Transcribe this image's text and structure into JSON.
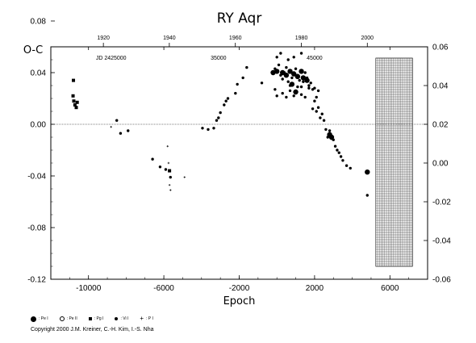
{
  "chart_data": {
    "type": "scatter",
    "title": "RY Aqr",
    "xlabel": "Epoch",
    "ylabel": "O-C",
    "xlim": [
      -12000,
      8000
    ],
    "ylim": [
      -0.12,
      0.06
    ],
    "left_ylim": [
      -0.12,
      0.06
    ],
    "right_ylim": [
      -0.06,
      0.06
    ],
    "x_ticks": [
      "-10000",
      "-6000",
      "-2000",
      "2000",
      "6000"
    ],
    "x_tick_values": [
      -10000,
      -6000,
      -2000,
      2000,
      6000
    ],
    "y_ticks_left": [
      "-0.12",
      "-0.08",
      "-0.04",
      "0.00",
      "0.04",
      "0.08"
    ],
    "y_tick_values_left": [
      -0.12,
      -0.08,
      -0.04,
      0.0,
      0.04,
      0.08
    ],
    "y_ticks_right": [
      "-0.06",
      "-0.04",
      "-0.02",
      "0.00",
      "0.02",
      "0.04",
      "0.06"
    ],
    "y_tick_values_right": [
      -0.06,
      -0.04,
      -0.02,
      0.0,
      0.02,
      0.04,
      0.06
    ],
    "top_year_ticks": [
      "1920",
      "1940",
      "1960",
      "1980",
      "2000"
    ],
    "top_year_epochs": [
      -9210,
      -5710,
      -2205,
      1300,
      4800
    ],
    "jd_labels": [
      "JD 2425000",
      "35000",
      "45000"
    ],
    "jd_label_epochs": [
      -8800,
      -3100,
      2000
    ],
    "future_band": [
      5250,
      7200
    ],
    "grid": false,
    "zero_line": true,
    "legend_position": "bottom-left",
    "legend": [
      {
        "symbol": "pe1",
        "label": ": Pe I"
      },
      {
        "symbol": "pe2",
        "label": ": Pe II"
      },
      {
        "symbol": "pg",
        "label": ": Pg I"
      },
      {
        "symbol": "vis",
        "label": ": Vi I"
      },
      {
        "symbol": "pi",
        "label": ": P I"
      }
    ],
    "series": [
      {
        "symbol": "pg",
        "points": [
          [
            -10800,
            0.034
          ],
          [
            -10820,
            0.022
          ],
          [
            -10780,
            0.018
          ],
          [
            -10720,
            0.015
          ],
          [
            -10650,
            0.013
          ],
          [
            -10600,
            0.017
          ],
          [
            -5700,
            -0.036
          ]
        ]
      },
      {
        "symbol": "vis",
        "points": [
          [
            -8500,
            0.003
          ],
          [
            -8300,
            -0.007
          ],
          [
            -7900,
            -0.005
          ],
          [
            -6600,
            -0.027
          ],
          [
            -6200,
            -0.033
          ],
          [
            -5900,
            -0.035
          ],
          [
            -5650,
            -0.041
          ],
          [
            -3950,
            -0.003
          ],
          [
            -3650,
            -0.004
          ],
          [
            -3350,
            -0.003
          ],
          [
            -3200,
            0.003
          ],
          [
            -3100,
            0.005
          ],
          [
            -3000,
            0.009
          ],
          [
            -2800,
            0.015
          ],
          [
            -2700,
            0.018
          ],
          [
            -2600,
            0.02
          ],
          [
            -2200,
            0.024
          ],
          [
            -2100,
            0.031
          ],
          [
            -1800,
            0.036
          ],
          [
            -1600,
            0.044
          ],
          [
            -800,
            0.032
          ],
          [
            0,
            0.052
          ],
          [
            -100,
            0.043
          ],
          [
            100,
            0.046
          ],
          [
            200,
            0.038
          ],
          [
            300,
            0.035
          ],
          [
            400,
            0.04
          ],
          [
            500,
            0.044
          ],
          [
            600,
            0.033
          ],
          [
            700,
            0.03
          ],
          [
            800,
            0.036
          ],
          [
            900,
            0.04
          ],
          [
            1000,
            0.043
          ],
          [
            1100,
            0.038
          ],
          [
            1200,
            0.034
          ],
          [
            1300,
            0.029
          ],
          [
            1400,
            0.033
          ],
          [
            1500,
            0.04
          ],
          [
            1600,
            0.036
          ],
          [
            1700,
            0.03
          ],
          [
            1800,
            0.032
          ],
          [
            1900,
            0.027
          ],
          [
            2000,
            0.028
          ],
          [
            2100,
            0.021
          ],
          [
            2200,
            0.026
          ],
          [
            1900,
            0.012
          ],
          [
            2000,
            0.018
          ],
          [
            2100,
            0.01
          ],
          [
            2200,
            0.013
          ],
          [
            2300,
            0.005
          ],
          [
            2400,
            0.008
          ],
          [
            2500,
            0.003
          ],
          [
            2600,
            -0.004
          ],
          [
            2700,
            -0.01
          ],
          [
            2800,
            -0.005
          ],
          [
            2900,
            -0.011
          ],
          [
            3000,
            -0.012
          ],
          [
            3100,
            -0.017
          ],
          [
            3200,
            -0.02
          ],
          [
            3300,
            -0.022
          ],
          [
            3400,
            -0.025
          ],
          [
            3500,
            -0.028
          ],
          [
            3700,
            -0.032
          ],
          [
            3900,
            -0.034
          ],
          [
            -100,
            0.027
          ],
          [
            0,
            0.022
          ],
          [
            300,
            0.024
          ],
          [
            500,
            0.021
          ],
          [
            700,
            0.026
          ],
          [
            900,
            0.022
          ],
          [
            1100,
            0.029
          ],
          [
            1300,
            0.023
          ],
          [
            1500,
            0.021
          ],
          [
            1700,
            0.028
          ],
          [
            200,
            0.055
          ],
          [
            900,
            0.052
          ],
          [
            1300,
            0.055
          ],
          [
            600,
            0.05
          ],
          [
            4800,
            -0.055
          ]
        ]
      },
      {
        "symbol": "pe1",
        "points": [
          [
            -200,
            0.04
          ],
          [
            0,
            0.041
          ],
          [
            300,
            0.04
          ],
          [
            500,
            0.038
          ],
          [
            700,
            0.041
          ],
          [
            900,
            0.039
          ],
          [
            1100,
            0.037
          ],
          [
            1300,
            0.041
          ],
          [
            1400,
            0.036
          ],
          [
            1600,
            0.034
          ],
          [
            800,
            0.031
          ],
          [
            1000,
            0.025
          ],
          [
            2900,
            -0.01
          ],
          [
            2800,
            -0.008
          ],
          [
            4800,
            -0.037
          ]
        ]
      },
      {
        "symbol": "pi",
        "points": [
          [
            -8800,
            -0.002
          ],
          [
            -5800,
            -0.017
          ],
          [
            -5750,
            -0.03
          ],
          [
            -5700,
            -0.047
          ],
          [
            -5650,
            -0.051
          ],
          [
            -4900,
            -0.041
          ]
        ]
      }
    ]
  },
  "copyright": "Copyright 2000 J.M. Kreiner, C.-H. Kim, I.-S. Nha"
}
